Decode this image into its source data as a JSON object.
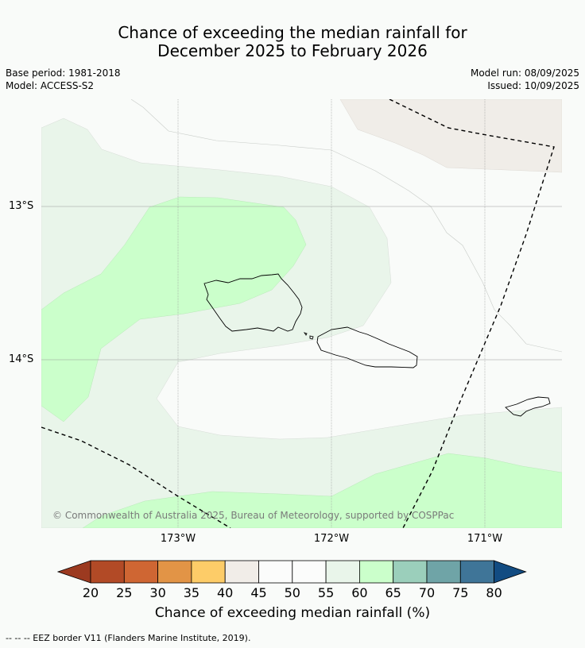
{
  "title_line1": "Chance of exceeding the median rainfall for",
  "title_line2": "December 2025 to February 2026",
  "base_period": "Base period: 1981-2018",
  "model": "Model: ACCESS-S2",
  "model_run": "Model run: 08/09/2025",
  "issued": "Issued: 10/09/2025",
  "copyright": "© Commonwealth of Australia 2025, Bureau of Meteorology, supported by COSPPac",
  "map": {
    "lon_range": [
      -173.9,
      -170.5
    ],
    "lat_range": [
      -12.3,
      -15.1
    ],
    "lat_labels": [
      "13°S",
      "14°S"
    ],
    "lon_labels": [
      "173°W",
      "172°W",
      "171°W"
    ],
    "border_style": "dashed",
    "colors": {
      "light_green": "#cbffcb",
      "pale_green": "#e9f5ea",
      "white": "#f9fbf9",
      "pale_brown": "#f0ede8"
    }
  },
  "colorbar": {
    "ticks": [
      "20",
      "25",
      "30",
      "35",
      "40",
      "45",
      "50",
      "55",
      "60",
      "65",
      "70",
      "75",
      "80"
    ],
    "colors": [
      "#b24a26",
      "#cf6633",
      "#e29446",
      "#fdcc68",
      "#f1ede8",
      "#fbfcfb",
      "#fbfcfb",
      "#e9f5ea",
      "#cbffcb",
      "#9bcfbb",
      "#6fa4a7",
      "#3f7598"
    ],
    "low_extend": "#9c3a20",
    "high_extend": "#124c82",
    "label": "Chance of exceeding median rainfall (%)"
  },
  "footnote": "--  --  -- EEZ border V11 (Flanders Marine Institute, 2019)."
}
